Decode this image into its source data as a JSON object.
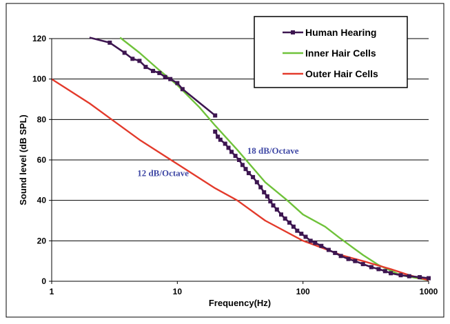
{
  "chart_data": {
    "type": "line",
    "xscale": "log",
    "xlim": [
      1,
      1000
    ],
    "ylim": [
      0,
      120
    ],
    "xlabel": "Frequency(Hz)",
    "ylabel": "Sound level (dB SPL)",
    "x_ticks": [
      "1",
      "10",
      "100",
      "1000"
    ],
    "y_ticks": [
      "0",
      "20",
      "40",
      "60",
      "80",
      "100",
      "120"
    ],
    "grid": "horizontal",
    "legend_position": "top-right",
    "series": [
      {
        "name": "Human Hearing",
        "color": "#3d1650",
        "marker": "square",
        "segments": [
          [
            [
              2.9,
              118
            ],
            [
              3.8,
              113
            ],
            [
              4.4,
              110
            ],
            [
              5.0,
              109
            ],
            [
              5.6,
              106
            ],
            [
              6.4,
              104
            ],
            [
              7.2,
              103
            ],
            [
              8.0,
              101
            ],
            [
              8.8,
              100
            ],
            [
              10.0,
              98
            ],
            [
              11.0,
              95
            ],
            [
              20.0,
              82
            ]
          ],
          [
            [
              20,
              74
            ],
            [
              21,
              71.5
            ],
            [
              22,
              70
            ],
            [
              24,
              68
            ],
            [
              25.5,
              66
            ],
            [
              27,
              64
            ],
            [
              29,
              62
            ],
            [
              31,
              60
            ],
            [
              33,
              57.5
            ],
            [
              35,
              55.5
            ],
            [
              37,
              53.5
            ],
            [
              40,
              51.5
            ],
            [
              43,
              49
            ],
            [
              46,
              46.5
            ],
            [
              49,
              44
            ],
            [
              52,
              42
            ],
            [
              55,
              39.5
            ],
            [
              58,
              37.5
            ],
            [
              62,
              35.5
            ],
            [
              67,
              33
            ],
            [
              72,
              31
            ],
            [
              78,
              29
            ],
            [
              84,
              27
            ],
            [
              90,
              25
            ],
            [
              97,
              23.5
            ],
            [
              105,
              22
            ],
            [
              115,
              20
            ],
            [
              125,
              19
            ],
            [
              140,
              17.5
            ],
            [
              160,
              15.5
            ],
            [
              180,
              14
            ],
            [
              200,
              12.5
            ],
            [
              230,
              11
            ],
            [
              260,
              10
            ],
            [
              300,
              8.5
            ],
            [
              350,
              7
            ],
            [
              400,
              6
            ],
            [
              450,
              5
            ],
            [
              500,
              4
            ],
            [
              600,
              3
            ],
            [
              700,
              2.5
            ],
            [
              850,
              2
            ],
            [
              1000,
              1.5
            ]
          ]
        ],
        "line_only": [
          [
            2.0,
            120.5
          ],
          [
            2.9,
            118
          ]
        ]
      },
      {
        "name": "Inner Hair Cells",
        "color": "#6fc23a",
        "points": [
          [
            3.5,
            120.5
          ],
          [
            5,
            113
          ],
          [
            7,
            105
          ],
          [
            10,
            97
          ],
          [
            15,
            86
          ],
          [
            20,
            77
          ],
          [
            30,
            65
          ],
          [
            50,
            49
          ],
          [
            75,
            40
          ],
          [
            100,
            33
          ],
          [
            150,
            27
          ],
          [
            200,
            21
          ],
          [
            300,
            13
          ],
          [
            400,
            8
          ],
          [
            600,
            3
          ],
          [
            1000,
            0.5
          ]
        ]
      },
      {
        "name": "Outer Hair Cells",
        "color": "#e33a2b",
        "points": [
          [
            1,
            100
          ],
          [
            2,
            88
          ],
          [
            3,
            80
          ],
          [
            5,
            70
          ],
          [
            10,
            58
          ],
          [
            20,
            46
          ],
          [
            30,
            40
          ],
          [
            50,
            30
          ],
          [
            100,
            20
          ],
          [
            150,
            16
          ],
          [
            200,
            13
          ],
          [
            300,
            10
          ],
          [
            500,
            6
          ],
          [
            700,
            3
          ],
          [
            1000,
            0.5
          ]
        ]
      }
    ],
    "annotations": [
      {
        "text": "18 dB/Octave",
        "x": 36,
        "y": 63,
        "color": "#3f48a5"
      },
      {
        "text": "12 dB/Octave",
        "x": 4.8,
        "y": 52,
        "color": "#3f48a5"
      }
    ]
  }
}
